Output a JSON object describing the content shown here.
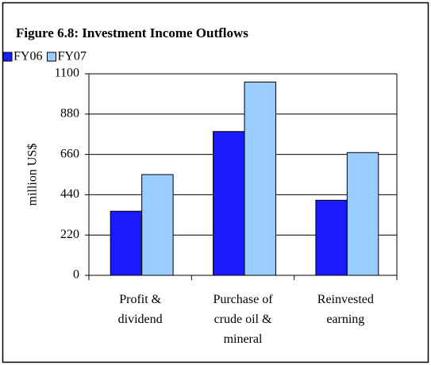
{
  "chart_data": {
    "type": "bar",
    "title": "Figure 6.8: Investment Income Outflows",
    "ylabel": "million US$",
    "categories": [
      [
        "Profit &",
        "dividend"
      ],
      [
        "Purchase of",
        "crude oil &",
        "mineral"
      ],
      [
        "Reinvested",
        "earning"
      ]
    ],
    "series": [
      {
        "name": "FY06",
        "color": "#1a1aff",
        "values": [
          350,
          785,
          410
        ]
      },
      {
        "name": "FY07",
        "color": "#99ccff",
        "values": [
          550,
          1055,
          670
        ]
      }
    ],
    "ylim": [
      0,
      1100
    ],
    "yticks": [
      0,
      220,
      440,
      660,
      880,
      1100
    ],
    "grid": true
  }
}
